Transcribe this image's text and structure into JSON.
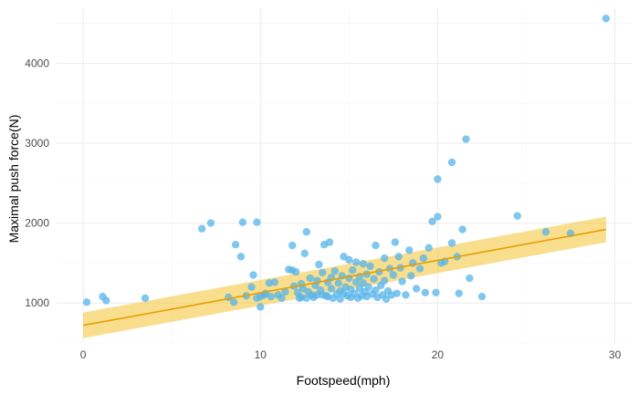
{
  "chart_data": {
    "type": "scatter",
    "title": "",
    "xlabel": "Footspeed(mph)",
    "ylabel": "Maximal push force(N)",
    "xlim": [
      -1.5,
      31
    ],
    "ylim": [
      500,
      4700
    ],
    "x_ticks": [
      0,
      10,
      20,
      30
    ],
    "y_ticks": [
      1000,
      2000,
      3000,
      4000
    ],
    "grid": true,
    "colors": {
      "points": "#56B4E9",
      "line": "#E69F00",
      "band": "#F5C842"
    },
    "trend": {
      "x": [
        0,
        29.5
      ],
      "y": [
        720,
        1920
      ],
      "ci_lower": [
        560,
        1760
      ],
      "ci_upper": [
        880,
        2080
      ]
    },
    "points": [
      [
        0.2,
        1010
      ],
      [
        1.1,
        1080
      ],
      [
        1.3,
        1030
      ],
      [
        3.5,
        1060
      ],
      [
        6.7,
        1930
      ],
      [
        7.2,
        2000
      ],
      [
        8.2,
        1070
      ],
      [
        8.5,
        1010
      ],
      [
        8.6,
        1730
      ],
      [
        8.9,
        1580
      ],
      [
        9.0,
        2010
      ],
      [
        9.2,
        1090
      ],
      [
        9.5,
        1200
      ],
      [
        9.6,
        1350
      ],
      [
        9.8,
        1060
      ],
      [
        9.8,
        2010
      ],
      [
        10.0,
        1080
      ],
      [
        10.0,
        950
      ],
      [
        10.2,
        1100
      ],
      [
        10.3,
        1120
      ],
      [
        10.5,
        1250
      ],
      [
        10.8,
        1260
      ],
      [
        10.6,
        1080
      ],
      [
        11.0,
        1100
      ],
      [
        11.2,
        1060
      ],
      [
        11.4,
        1140
      ],
      [
        11.6,
        1420
      ],
      [
        11.8,
        1410
      ],
      [
        11.9,
        1210
      ],
      [
        11.8,
        1720
      ],
      [
        12.0,
        1390
      ],
      [
        12.1,
        1130
      ],
      [
        12.2,
        1060
      ],
      [
        12.3,
        1070
      ],
      [
        12.3,
        1240
      ],
      [
        12.4,
        1180
      ],
      [
        12.5,
        1620
      ],
      [
        12.6,
        1060
      ],
      [
        12.6,
        1890
      ],
      [
        12.7,
        1140
      ],
      [
        12.8,
        1310
      ],
      [
        12.9,
        1100
      ],
      [
        13.0,
        1070
      ],
      [
        13.1,
        1220
      ],
      [
        13.2,
        1280
      ],
      [
        13.2,
        1100
      ],
      [
        13.3,
        1480
      ],
      [
        13.4,
        1160
      ],
      [
        13.5,
        1380
      ],
      [
        13.5,
        1100
      ],
      [
        13.6,
        1730
      ],
      [
        13.7,
        1090
      ],
      [
        13.8,
        1260
      ],
      [
        13.8,
        1080
      ],
      [
        13.9,
        1760
      ],
      [
        14.0,
        1180
      ],
      [
        14.0,
        1320
      ],
      [
        14.1,
        1060
      ],
      [
        14.2,
        1400
      ],
      [
        14.3,
        1110
      ],
      [
        14.4,
        1250
      ],
      [
        14.5,
        1150
      ],
      [
        14.5,
        1050
      ],
      [
        14.6,
        1340
      ],
      [
        14.7,
        1580
      ],
      [
        14.7,
        1120
      ],
      [
        14.8,
        1200
      ],
      [
        14.9,
        1090
      ],
      [
        15.0,
        1540
      ],
      [
        15.0,
        1310
      ],
      [
        15.1,
        1070
      ],
      [
        15.1,
        1170
      ],
      [
        15.2,
        1410
      ],
      [
        15.3,
        1120
      ],
      [
        15.4,
        1510
      ],
      [
        15.4,
        1260
      ],
      [
        15.5,
        1060
      ],
      [
        15.6,
        1180
      ],
      [
        15.6,
        1330
      ],
      [
        15.7,
        1090
      ],
      [
        15.8,
        1490
      ],
      [
        15.8,
        1250
      ],
      [
        15.9,
        1140
      ],
      [
        16.0,
        1360
      ],
      [
        16.0,
        1080
      ],
      [
        16.1,
        1200
      ],
      [
        16.2,
        1460
      ],
      [
        16.3,
        1110
      ],
      [
        16.4,
        1300
      ],
      [
        16.5,
        1720
      ],
      [
        16.5,
        1160
      ],
      [
        16.6,
        1070
      ],
      [
        16.7,
        1390
      ],
      [
        16.8,
        1220
      ],
      [
        16.9,
        1100
      ],
      [
        17.0,
        1280
      ],
      [
        17.0,
        1560
      ],
      [
        17.1,
        1050
      ],
      [
        17.2,
        1150
      ],
      [
        17.3,
        1430
      ],
      [
        17.4,
        1100
      ],
      [
        17.5,
        1350
      ],
      [
        17.6,
        1760
      ],
      [
        17.7,
        1120
      ],
      [
        17.8,
        1580
      ],
      [
        17.9,
        1440
      ],
      [
        18.0,
        1270
      ],
      [
        18.2,
        1100
      ],
      [
        18.4,
        1660
      ],
      [
        18.5,
        1340
      ],
      [
        18.6,
        1500
      ],
      [
        18.8,
        1180
      ],
      [
        19.0,
        1430
      ],
      [
        19.2,
        1560
      ],
      [
        19.3,
        1130
      ],
      [
        19.5,
        1690
      ],
      [
        19.7,
        2020
      ],
      [
        19.9,
        1130
      ],
      [
        20.0,
        2080
      ],
      [
        20.0,
        2550
      ],
      [
        20.2,
        1500
      ],
      [
        20.4,
        1520
      ],
      [
        20.8,
        2760
      ],
      [
        20.8,
        1750
      ],
      [
        21.1,
        1580
      ],
      [
        21.2,
        1120
      ],
      [
        21.4,
        1920
      ],
      [
        21.6,
        3050
      ],
      [
        21.8,
        1310
      ],
      [
        22.5,
        1080
      ],
      [
        24.5,
        2090
      ],
      [
        26.1,
        1890
      ],
      [
        27.5,
        1870
      ],
      [
        29.5,
        4560
      ]
    ]
  }
}
